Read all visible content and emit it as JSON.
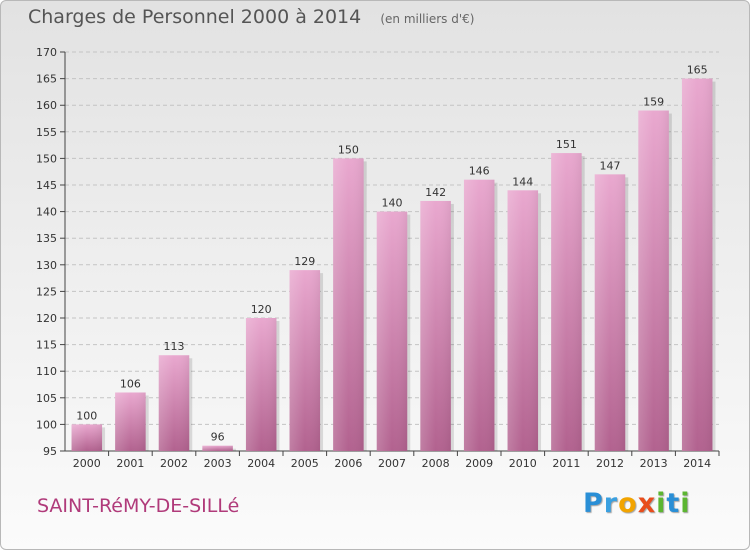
{
  "header": {
    "title": "Charges de Personnel 2000 à 2014",
    "unit": "(en milliers d'€)"
  },
  "commune": "SAINT-RéMY-DE-SILLé",
  "logo": {
    "letters": [
      {
        "char": "P",
        "color": "#2a8fd6"
      },
      {
        "char": "r",
        "color": "#3aa0e0"
      },
      {
        "char": "o",
        "color": "#f2a400"
      },
      {
        "char": "x",
        "color": "#e84d1c"
      },
      {
        "char": "i",
        "color": "#5cb531"
      },
      {
        "char": "t",
        "color": "#2a8fd6"
      },
      {
        "char": "i",
        "color": "#5cb531"
      }
    ]
  },
  "chart_data": {
    "type": "bar",
    "categories": [
      "2000",
      "2001",
      "2002",
      "2003",
      "2004",
      "2005",
      "2006",
      "2007",
      "2008",
      "2009",
      "2010",
      "2011",
      "2012",
      "2013",
      "2014"
    ],
    "values": [
      100,
      106,
      113,
      96,
      120,
      129,
      150,
      140,
      142,
      146,
      144,
      151,
      147,
      159,
      165
    ],
    "ylim": [
      95,
      170
    ],
    "yticks": [
      95,
      100,
      105,
      110,
      115,
      120,
      125,
      130,
      135,
      140,
      145,
      150,
      155,
      160,
      165,
      170
    ],
    "grid": true,
    "bar_color": "#c25690"
  }
}
